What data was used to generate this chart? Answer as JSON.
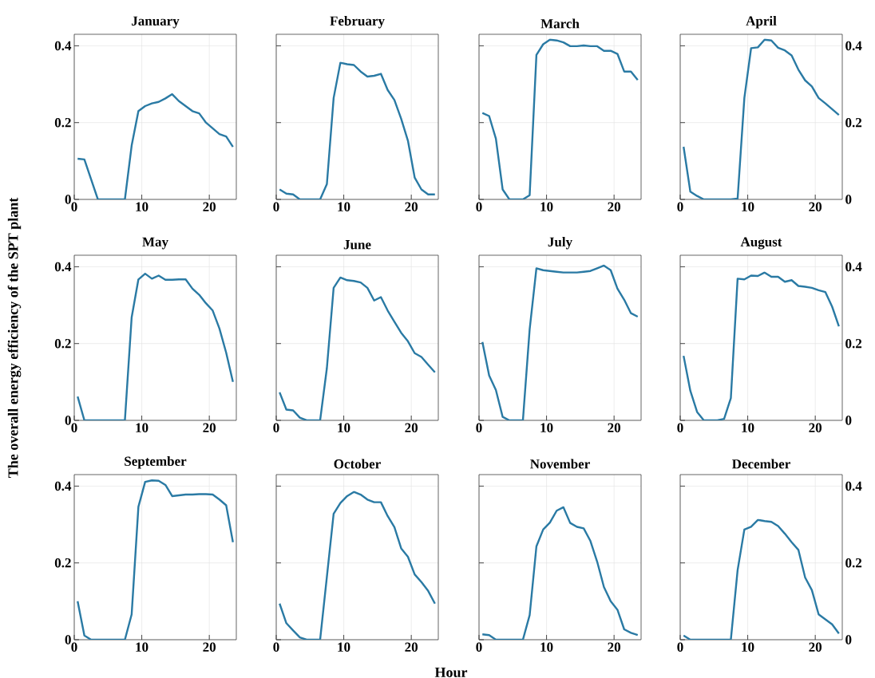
{
  "chart_data": [
    {
      "type": "line",
      "title": "January",
      "x": [
        0.5,
        1.5,
        2.5,
        3.5,
        4.5,
        5.5,
        6.5,
        7.5,
        8.5,
        9.5,
        10.5,
        11.5,
        12.5,
        13.5,
        14.5,
        15.5,
        16.5,
        17.5,
        18.5,
        19.5,
        20.5,
        21.5,
        22.5,
        23.5
      ],
      "values": [
        0.106,
        0.104,
        0.052,
        0,
        0,
        0,
        0,
        0,
        0.14,
        0.23,
        0.243,
        0.25,
        0.254,
        0.263,
        0.274,
        0.256,
        0.243,
        0.23,
        0.224,
        0.2,
        0.185,
        0.17,
        0.164,
        0.137
      ],
      "color": "#2a7aa4",
      "xlim": [
        0,
        24
      ],
      "ylim": [
        0,
        0.43
      ],
      "xticks": [
        0,
        10,
        20
      ],
      "yticks": [
        0,
        0.2,
        0.4
      ],
      "grid": true
    },
    {
      "type": "line",
      "title": "February",
      "x": [
        0.5,
        1.5,
        2.5,
        3.5,
        4.5,
        5.5,
        6.5,
        7.5,
        8.5,
        9.5,
        10.5,
        11.5,
        12.5,
        13.5,
        14.5,
        15.5,
        16.5,
        17.5,
        18.5,
        19.5,
        20.5,
        21.5,
        22.5,
        23.5
      ],
      "values": [
        0.026,
        0.015,
        0.013,
        0,
        0,
        0,
        0,
        0.04,
        0.264,
        0.356,
        0.352,
        0.35,
        0.333,
        0.32,
        0.322,
        0.327,
        0.285,
        0.259,
        0.21,
        0.153,
        0.057,
        0.026,
        0.013,
        0.013
      ],
      "color": "#2a7aa4",
      "xlim": [
        0,
        24
      ],
      "ylim": [
        0,
        0.43
      ],
      "xticks": [
        0,
        10,
        20
      ],
      "yticks": [
        0,
        0.2,
        0.4
      ],
      "grid": true,
      "tick_labels": "x"
    },
    {
      "type": "line",
      "title": "March",
      "x": [
        0.5,
        1.5,
        2.5,
        3.5,
        4.5,
        5.5,
        6.5,
        7.5,
        8.5,
        9.5,
        10.5,
        11.5,
        12.5,
        13.5,
        14.5,
        15.5,
        16.5,
        17.5,
        18.5,
        19.5,
        20.5,
        21.5,
        22.5,
        23.5
      ],
      "values": [
        0.225,
        0.217,
        0.158,
        0.026,
        0,
        0,
        0,
        0.011,
        0.376,
        0.404,
        0.416,
        0.414,
        0.409,
        0.399,
        0.399,
        0.401,
        0.399,
        0.399,
        0.387,
        0.387,
        0.379,
        0.333,
        0.333,
        0.311
      ],
      "color": "#2a7aa4",
      "xlim": [
        0,
        24
      ],
      "ylim": [
        0,
        0.43
      ],
      "xticks": [
        0,
        10,
        20
      ],
      "yticks": [
        0,
        0.2,
        0.4
      ],
      "grid": true,
      "tick_labels": "x"
    },
    {
      "type": "line",
      "title": "April",
      "x": [
        0.5,
        1.5,
        2.5,
        3.5,
        4.5,
        5.5,
        6.5,
        7.5,
        8.5,
        9.5,
        10.5,
        11.5,
        12.5,
        13.5,
        14.5,
        15.5,
        16.5,
        17.5,
        18.5,
        19.5,
        20.5,
        21.5,
        22.5,
        23.5
      ],
      "values": [
        0.137,
        0.02,
        0.009,
        0,
        0,
        0,
        0,
        0,
        0.002,
        0.264,
        0.394,
        0.396,
        0.416,
        0.414,
        0.395,
        0.388,
        0.375,
        0.338,
        0.31,
        0.294,
        0.264,
        0.25,
        0.235,
        0.22
      ],
      "color": "#2a7aa4",
      "xlim": [
        0,
        24
      ],
      "ylim": [
        0,
        0.43
      ],
      "xticks": [
        0,
        10,
        20
      ],
      "yticks": [
        0,
        0.2,
        0.4
      ],
      "grid": true
    },
    {
      "type": "line",
      "title": "May",
      "ylabel": "The overall energy efficiency of the SPT plant",
      "x": [
        0.5,
        1.5,
        2.5,
        3.5,
        4.5,
        5.5,
        6.5,
        7.5,
        8.5,
        9.5,
        10.5,
        11.5,
        12.5,
        13.5,
        14.5,
        15.5,
        16.5,
        17.5,
        18.5,
        19.5,
        20.5,
        21.5,
        22.5,
        23.5
      ],
      "values": [
        0.062,
        0,
        0,
        0,
        0,
        0,
        0,
        0,
        0.268,
        0.367,
        0.382,
        0.369,
        0.377,
        0.366,
        0.366,
        0.367,
        0.367,
        0.343,
        0.327,
        0.305,
        0.286,
        0.239,
        0.176,
        0.1
      ],
      "color": "#2a7aa4",
      "xlim": [
        0,
        24
      ],
      "ylim": [
        0,
        0.43
      ],
      "xticks": [
        0,
        10,
        20
      ],
      "yticks": [
        0,
        0.2,
        0.4
      ],
      "grid": true
    },
    {
      "type": "line",
      "title": "June",
      "x": [
        0.5,
        1.5,
        2.5,
        3.5,
        4.5,
        5.5,
        6.5,
        7.5,
        8.5,
        9.5,
        10.5,
        11.5,
        12.5,
        13.5,
        14.5,
        15.5,
        16.5,
        17.5,
        18.5,
        19.5,
        20.5,
        21.5,
        22.5,
        23.5
      ],
      "values": [
        0.073,
        0.028,
        0.026,
        0.007,
        0,
        0,
        0,
        0.136,
        0.345,
        0.372,
        0.365,
        0.363,
        0.359,
        0.345,
        0.312,
        0.321,
        0.286,
        0.257,
        0.228,
        0.206,
        0.175,
        0.165,
        0.145,
        0.125
      ],
      "color": "#2a7aa4",
      "xlim": [
        0,
        24
      ],
      "ylim": [
        0,
        0.43
      ],
      "xticks": [
        0,
        10,
        20
      ],
      "yticks": [
        0,
        0.2,
        0.4
      ],
      "grid": true,
      "tick_labels": "x"
    },
    {
      "type": "line",
      "title": "July",
      "x": [
        0.5,
        1.5,
        2.5,
        3.5,
        4.5,
        5.5,
        6.5,
        7.5,
        8.5,
        9.5,
        10.5,
        11.5,
        12.5,
        13.5,
        14.5,
        15.5,
        16.5,
        17.5,
        18.5,
        19.5,
        20.5,
        21.5,
        22.5,
        23.5
      ],
      "values": [
        0.204,
        0.117,
        0.079,
        0.009,
        0,
        0,
        0,
        0.237,
        0.396,
        0.391,
        0.389,
        0.387,
        0.385,
        0.385,
        0.385,
        0.387,
        0.389,
        0.396,
        0.403,
        0.391,
        0.343,
        0.314,
        0.279,
        0.27
      ],
      "color": "#2a7aa4",
      "xlim": [
        0,
        24
      ],
      "ylim": [
        0,
        0.43
      ],
      "xticks": [
        0,
        10,
        20
      ],
      "yticks": [
        0,
        0.2,
        0.4
      ],
      "grid": true,
      "tick_labels": "x"
    },
    {
      "type": "line",
      "title": "August",
      "x": [
        0.5,
        1.5,
        2.5,
        3.5,
        4.5,
        5.5,
        6.5,
        7.5,
        8.5,
        9.5,
        10.5,
        11.5,
        12.5,
        13.5,
        14.5,
        15.5,
        16.5,
        17.5,
        18.5,
        19.5,
        20.5,
        21.5,
        22.5,
        23.5
      ],
      "values": [
        0.168,
        0.077,
        0.022,
        0,
        0,
        0,
        0.004,
        0.058,
        0.369,
        0.367,
        0.377,
        0.376,
        0.385,
        0.374,
        0.374,
        0.361,
        0.365,
        0.35,
        0.348,
        0.345,
        0.339,
        0.334,
        0.296,
        0.245
      ],
      "color": "#2a7aa4",
      "xlim": [
        0,
        24
      ],
      "ylim": [
        0,
        0.43
      ],
      "xticks": [
        0,
        10,
        20
      ],
      "yticks": [
        0,
        0.2,
        0.4
      ],
      "grid": true
    },
    {
      "type": "line",
      "title": "September",
      "x": [
        0.5,
        1.5,
        2.5,
        3.5,
        4.5,
        5.5,
        6.5,
        7.5,
        8.5,
        9.5,
        10.5,
        11.5,
        12.5,
        13.5,
        14.5,
        15.5,
        16.5,
        17.5,
        18.5,
        19.5,
        20.5,
        21.5,
        22.5,
        23.5
      ],
      "values": [
        0.1,
        0.011,
        0,
        0,
        0,
        0,
        0,
        0,
        0.066,
        0.346,
        0.411,
        0.415,
        0.414,
        0.403,
        0.374,
        0.376,
        0.378,
        0.378,
        0.379,
        0.379,
        0.378,
        0.365,
        0.35,
        0.254
      ],
      "color": "#2a7aa4",
      "xlim": [
        0,
        24
      ],
      "ylim": [
        0,
        0.43
      ],
      "xticks": [
        0,
        10,
        20
      ],
      "yticks": [
        0,
        0.2,
        0.4
      ],
      "grid": true
    },
    {
      "type": "line",
      "title": "October",
      "xlabel": "Hour",
      "x": [
        0.5,
        1.5,
        2.5,
        3.5,
        4.5,
        5.5,
        6.5,
        7.5,
        8.5,
        9.5,
        10.5,
        11.5,
        12.5,
        13.5,
        14.5,
        15.5,
        16.5,
        17.5,
        18.5,
        19.5,
        20.5,
        21.5,
        22.5,
        23.5
      ],
      "values": [
        0.094,
        0.043,
        0.024,
        0.006,
        0,
        0,
        0,
        0.164,
        0.328,
        0.356,
        0.374,
        0.385,
        0.378,
        0.365,
        0.358,
        0.358,
        0.322,
        0.293,
        0.238,
        0.216,
        0.17,
        0.15,
        0.127,
        0.094
      ],
      "color": "#2a7aa4",
      "xlim": [
        0,
        24
      ],
      "ylim": [
        0,
        0.43
      ],
      "xticks": [
        0,
        10,
        20
      ],
      "yticks": [
        0,
        0.2,
        0.4
      ],
      "grid": true,
      "tick_labels": "x"
    },
    {
      "type": "line",
      "title": "November",
      "x": [
        0.5,
        1.5,
        2.5,
        3.5,
        4.5,
        5.5,
        6.5,
        7.5,
        8.5,
        9.5,
        10.5,
        11.5,
        12.5,
        13.5,
        14.5,
        15.5,
        16.5,
        17.5,
        18.5,
        19.5,
        20.5,
        21.5,
        22.5,
        23.5
      ],
      "values": [
        0.014,
        0.012,
        0,
        0,
        0,
        0,
        0,
        0.064,
        0.243,
        0.287,
        0.305,
        0.336,
        0.345,
        0.304,
        0.294,
        0.29,
        0.257,
        0.203,
        0.137,
        0.1,
        0.078,
        0.027,
        0.018,
        0.012
      ],
      "color": "#2a7aa4",
      "xlim": [
        0,
        24
      ],
      "ylim": [
        0,
        0.43
      ],
      "xticks": [
        0,
        10,
        20
      ],
      "yticks": [
        0,
        0.2,
        0.4
      ],
      "grid": true,
      "tick_labels": "x"
    },
    {
      "type": "line",
      "title": "December",
      "x": [
        0.5,
        1.5,
        2.5,
        3.5,
        4.5,
        5.5,
        6.5,
        7.5,
        8.5,
        9.5,
        10.5,
        11.5,
        12.5,
        13.5,
        14.5,
        15.5,
        16.5,
        17.5,
        18.5,
        19.5,
        20.5,
        21.5,
        22.5,
        23.5
      ],
      "values": [
        0.011,
        0,
        0,
        0,
        0,
        0,
        0,
        0,
        0.181,
        0.287,
        0.294,
        0.312,
        0.309,
        0.307,
        0.296,
        0.276,
        0.254,
        0.234,
        0.162,
        0.129,
        0.066,
        0.053,
        0.04,
        0.016
      ],
      "color": "#2a7aa4",
      "xlim": [
        0,
        24
      ],
      "ylim": [
        0,
        0.43
      ],
      "xticks": [
        0,
        10,
        20
      ],
      "yticks": [
        0,
        0.2,
        0.4
      ],
      "grid": true
    }
  ]
}
